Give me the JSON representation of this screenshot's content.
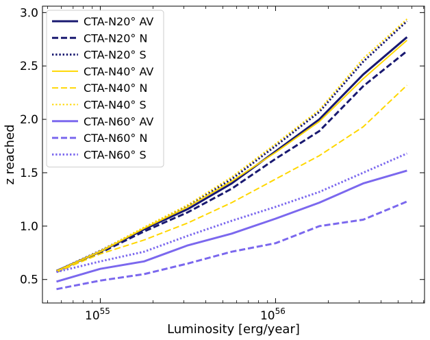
{
  "chart_data": {
    "type": "line",
    "title": "",
    "xlabel": "Luminosity [erg/year]",
    "ylabel": "z reached",
    "xscale": "log",
    "xlim_log10": [
      54.67,
      56.85
    ],
    "ylim": [
      0.28,
      3.06
    ],
    "xticks_major": [
      {
        "exp10": 55,
        "base": "10",
        "exponent": "55"
      },
      {
        "exp10": 56,
        "base": "10",
        "exponent": "56"
      }
    ],
    "yticks": [
      "0.5",
      "1.0",
      "1.5",
      "2.0",
      "2.5",
      "3.0"
    ],
    "x_log10": [
      54.75,
      55.0,
      55.25,
      55.5,
      55.75,
      56.0,
      56.25,
      56.5,
      56.75
    ],
    "legend_position": "upper-left",
    "series": [
      {
        "name": "CTA-N20° AV",
        "color": "#191970",
        "style": "solid",
        "values": [
          0.58,
          0.76,
          0.97,
          1.16,
          1.4,
          1.7,
          2.0,
          2.42,
          2.77
        ]
      },
      {
        "name": "CTA-N20° N",
        "color": "#191970",
        "style": "dashed",
        "values": [
          0.57,
          0.75,
          0.95,
          1.13,
          1.35,
          1.63,
          1.89,
          2.31,
          2.64
        ]
      },
      {
        "name": "CTA-N20° S",
        "color": "#191970",
        "style": "dotted",
        "values": [
          0.58,
          0.77,
          0.98,
          1.19,
          1.44,
          1.75,
          2.07,
          2.54,
          2.92
        ]
      },
      {
        "name": "CTA-N40° AV",
        "color": "#FFD700",
        "style": "solid",
        "values": [
          0.58,
          0.76,
          0.98,
          1.18,
          1.42,
          1.69,
          1.98,
          2.38,
          2.74
        ]
      },
      {
        "name": "CTA-N40° N",
        "color": "#FFD700",
        "style": "dashed",
        "values": [
          0.57,
          0.74,
          0.87,
          1.03,
          1.22,
          1.44,
          1.66,
          1.93,
          2.32
        ]
      },
      {
        "name": "CTA-N40° S",
        "color": "#FFD700",
        "style": "dotted",
        "values": [
          0.58,
          0.77,
          0.99,
          1.2,
          1.46,
          1.77,
          2.09,
          2.57,
          2.94
        ]
      },
      {
        "name": "CTA-N60° AV",
        "color": "#7B68EE",
        "style": "solid",
        "values": [
          0.48,
          0.6,
          0.67,
          0.82,
          0.93,
          1.07,
          1.22,
          1.4,
          1.52
        ]
      },
      {
        "name": "CTA-N60° N",
        "color": "#7B68EE",
        "style": "dashed",
        "values": [
          0.41,
          0.49,
          0.55,
          0.65,
          0.76,
          0.84,
          1.0,
          1.06,
          1.23
        ]
      },
      {
        "name": "CTA-N60° S",
        "color": "#7B68EE",
        "style": "dotted",
        "values": [
          0.57,
          0.67,
          0.76,
          0.91,
          1.05,
          1.18,
          1.32,
          1.5,
          1.68
        ]
      }
    ]
  }
}
